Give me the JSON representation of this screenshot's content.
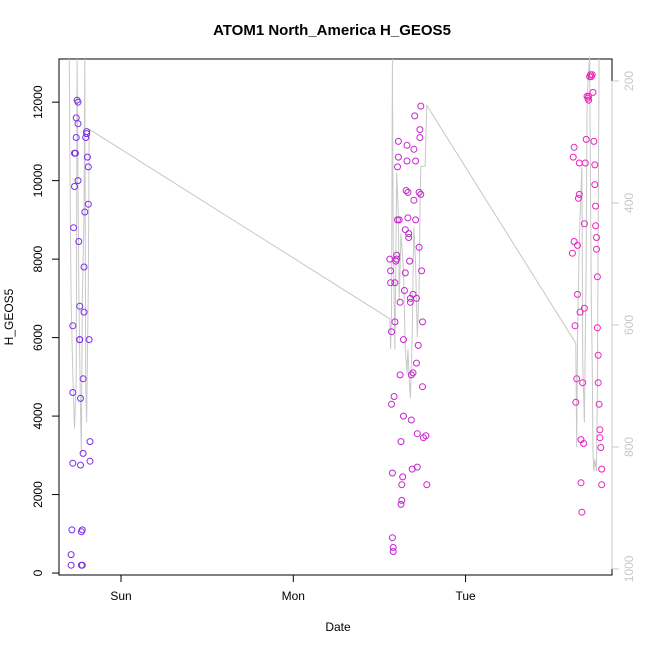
{
  "chart_data": {
    "type": "scatter",
    "title": "ATOM1 North_America H_GEOS5",
    "xlabel": "Date",
    "ylabel": "H_GEOS5",
    "x_ticks": [
      {
        "value": 1.0,
        "label": "Sun"
      },
      {
        "value": 2.0,
        "label": "Mon"
      },
      {
        "value": 3.0,
        "label": "Tue"
      }
    ],
    "xlim": [
      0.64,
      3.85
    ],
    "ylim": [
      -50,
      13100
    ],
    "y_ticks": [
      0,
      2000,
      4000,
      6000,
      8000,
      10000,
      12000
    ],
    "y2_ticks": [
      200,
      400,
      600,
      800,
      1000
    ],
    "y2lim": [
      164,
      1010
    ],
    "grid": false,
    "legend": "none",
    "colors": {
      "series_start": "#7a2ee8",
      "series_end": "#ee22bb",
      "pressure_line": "#c8c8c8",
      "right_axis": "#c8c8c8"
    },
    "series": [
      {
        "values": [
          [
            0.71,
            200
          ],
          [
            0.71,
            470
          ],
          [
            0.715,
            1100
          ],
          [
            0.72,
            2800
          ],
          [
            0.72,
            4600
          ],
          [
            0.72,
            6300
          ],
          [
            0.725,
            8800
          ],
          [
            0.73,
            9850
          ],
          [
            0.73,
            10700
          ],
          [
            0.735,
            10700
          ],
          [
            0.74,
            11100
          ],
          [
            0.74,
            11600
          ],
          [
            0.745,
            12050
          ],
          [
            0.75,
            12000
          ],
          [
            0.75,
            11450
          ],
          [
            0.75,
            10000
          ],
          [
            0.755,
            8450
          ],
          [
            0.76,
            6800
          ],
          [
            0.76,
            5950
          ],
          [
            0.76,
            5950
          ],
          [
            0.765,
            4450
          ],
          [
            0.765,
            2750
          ],
          [
            0.77,
            1050
          ],
          [
            0.77,
            200
          ],
          [
            0.775,
            1100
          ],
          [
            0.775,
            200
          ],
          [
            0.78,
            3050
          ],
          [
            0.78,
            4950
          ],
          [
            0.785,
            6650
          ],
          [
            0.785,
            7800
          ],
          [
            0.79,
            9200
          ],
          [
            0.795,
            11100
          ],
          [
            0.8,
            11250
          ],
          [
            0.8,
            11200
          ],
          [
            0.805,
            10600
          ],
          [
            0.81,
            10350
          ],
          [
            0.81,
            9400
          ],
          [
            0.815,
            5950
          ],
          [
            0.82,
            3350
          ],
          [
            0.82,
            2850
          ]
        ]
      },
      {
        "values": [
          [
            2.56,
            8000
          ],
          [
            2.565,
            7400
          ],
          [
            2.565,
            7700
          ],
          [
            2.57,
            6150
          ],
          [
            2.57,
            4300
          ],
          [
            2.575,
            2550
          ],
          [
            2.575,
            900
          ],
          [
            2.58,
            650
          ],
          [
            2.58,
            550
          ],
          [
            2.585,
            4500
          ],
          [
            2.59,
            6400
          ],
          [
            2.59,
            7400
          ],
          [
            2.595,
            7950
          ],
          [
            2.6,
            8000
          ],
          [
            2.6,
            8100
          ],
          [
            2.605,
            9000
          ],
          [
            2.605,
            10350
          ],
          [
            2.61,
            11000
          ],
          [
            2.61,
            10600
          ],
          [
            2.615,
            9000
          ],
          [
            2.62,
            6900
          ],
          [
            2.62,
            5050
          ],
          [
            2.625,
            3350
          ],
          [
            2.625,
            1750
          ],
          [
            2.63,
            1850
          ],
          [
            2.63,
            2250
          ],
          [
            2.635,
            2450
          ],
          [
            2.64,
            4000
          ],
          [
            2.64,
            5950
          ],
          [
            2.645,
            7200
          ],
          [
            2.65,
            7650
          ],
          [
            2.65,
            8750
          ],
          [
            2.655,
            9750
          ],
          [
            2.66,
            10900
          ],
          [
            2.66,
            10500
          ],
          [
            2.665,
            9700
          ],
          [
            2.665,
            9050
          ],
          [
            2.67,
            8650
          ],
          [
            2.67,
            8550
          ],
          [
            2.675,
            7950
          ],
          [
            2.68,
            7000
          ],
          [
            2.68,
            6900
          ],
          [
            2.685,
            5050
          ],
          [
            2.685,
            3900
          ],
          [
            2.69,
            2650
          ],
          [
            2.695,
            5100
          ],
          [
            2.695,
            7100
          ],
          [
            2.7,
            9500
          ],
          [
            2.7,
            10800
          ],
          [
            2.705,
            11650
          ],
          [
            2.71,
            10500
          ],
          [
            2.71,
            9000
          ],
          [
            2.715,
            7000
          ],
          [
            2.715,
            5350
          ],
          [
            2.72,
            3550
          ],
          [
            2.72,
            2700
          ],
          [
            2.725,
            5800
          ],
          [
            2.73,
            8300
          ],
          [
            2.73,
            9700
          ],
          [
            2.735,
            11100
          ],
          [
            2.735,
            11300
          ],
          [
            2.74,
            11900
          ],
          [
            2.74,
            9650
          ],
          [
            2.745,
            7700
          ],
          [
            2.75,
            6400
          ],
          [
            2.75,
            4750
          ],
          [
            2.755,
            3450
          ],
          [
            2.77,
            3500
          ],
          [
            2.775,
            2250
          ]
        ]
      },
      {
        "values": [
          [
            3.62,
            8150
          ],
          [
            3.625,
            10600
          ],
          [
            3.63,
            10850
          ],
          [
            3.63,
            8450
          ],
          [
            3.635,
            6300
          ],
          [
            3.64,
            4350
          ],
          [
            3.645,
            4950
          ],
          [
            3.65,
            7100
          ],
          [
            3.65,
            8350
          ],
          [
            3.655,
            9550
          ],
          [
            3.66,
            9650
          ],
          [
            3.66,
            10450
          ],
          [
            3.665,
            6650
          ],
          [
            3.67,
            3400
          ],
          [
            3.67,
            2300
          ],
          [
            3.675,
            1550
          ],
          [
            3.68,
            4850
          ],
          [
            3.685,
            3300
          ],
          [
            3.69,
            6750
          ],
          [
            3.69,
            8900
          ],
          [
            3.695,
            10450
          ],
          [
            3.7,
            11050
          ],
          [
            3.705,
            12150
          ],
          [
            3.71,
            12100
          ],
          [
            3.715,
            12150
          ],
          [
            3.715,
            12050
          ],
          [
            3.72,
            12650
          ],
          [
            3.725,
            12700
          ],
          [
            3.73,
            12650
          ],
          [
            3.735,
            12700
          ],
          [
            3.74,
            12250
          ],
          [
            3.745,
            11000
          ],
          [
            3.75,
            10400
          ],
          [
            3.75,
            9900
          ],
          [
            3.755,
            9350
          ],
          [
            3.755,
            8850
          ],
          [
            3.76,
            8550
          ],
          [
            3.76,
            8250
          ],
          [
            3.765,
            7550
          ],
          [
            3.765,
            6250
          ],
          [
            3.77,
            5550
          ],
          [
            3.77,
            4850
          ],
          [
            3.775,
            4300
          ],
          [
            3.78,
            3650
          ],
          [
            3.78,
            3450
          ],
          [
            3.785,
            3200
          ],
          [
            3.79,
            2650
          ],
          [
            3.79,
            2250
          ]
        ]
      }
    ],
    "pressure_line": [
      [
        0.7,
        164
      ],
      [
        0.705,
        390
      ],
      [
        0.71,
        560
      ],
      [
        0.72,
        680
      ],
      [
        0.73,
        770
      ],
      [
        0.74,
        690
      ],
      [
        0.745,
        164
      ],
      [
        0.755,
        540
      ],
      [
        0.765,
        740
      ],
      [
        0.77,
        810
      ],
      [
        0.775,
        560
      ],
      [
        0.785,
        420
      ],
      [
        0.79,
        164
      ],
      [
        0.795,
        700
      ],
      [
        0.8,
        760
      ],
      [
        0.81,
        540
      ],
      [
        0.815,
        300
      ],
      [
        0.82,
        280
      ],
      [
        2.56,
        590
      ],
      [
        2.565,
        640
      ],
      [
        2.57,
        580
      ],
      [
        2.575,
        164
      ],
      [
        2.58,
        460
      ],
      [
        2.59,
        640
      ],
      [
        2.595,
        500
      ],
      [
        2.6,
        350
      ],
      [
        2.61,
        420
      ],
      [
        2.615,
        560
      ],
      [
        2.625,
        450
      ],
      [
        2.64,
        510
      ],
      [
        2.65,
        640
      ],
      [
        2.66,
        680
      ],
      [
        2.665,
        640
      ],
      [
        2.675,
        700
      ],
      [
        2.68,
        720
      ],
      [
        2.69,
        620
      ],
      [
        2.695,
        520
      ],
      [
        2.7,
        440
      ],
      [
        2.71,
        500
      ],
      [
        2.72,
        620
      ],
      [
        2.73,
        540
      ],
      [
        2.735,
        420
      ],
      [
        2.74,
        340
      ],
      [
        2.75,
        340
      ],
      [
        2.76,
        340
      ],
      [
        2.765,
        340
      ],
      [
        2.775,
        240
      ],
      [
        3.64,
        630
      ],
      [
        3.645,
        800
      ],
      [
        3.65,
        620
      ],
      [
        3.66,
        460
      ],
      [
        3.67,
        380
      ],
      [
        3.675,
        340
      ],
      [
        3.68,
        660
      ],
      [
        3.69,
        760
      ],
      [
        3.695,
        620
      ],
      [
        3.7,
        500
      ],
      [
        3.705,
        250
      ],
      [
        3.71,
        200
      ],
      [
        3.72,
        160
      ],
      [
        3.73,
        560
      ],
      [
        3.735,
        660
      ],
      [
        3.74,
        810
      ],
      [
        3.745,
        840
      ],
      [
        3.75,
        820
      ],
      [
        3.76,
        840
      ],
      [
        3.765,
        700
      ],
      [
        3.77,
        440
      ],
      [
        3.775,
        164
      ]
    ]
  }
}
